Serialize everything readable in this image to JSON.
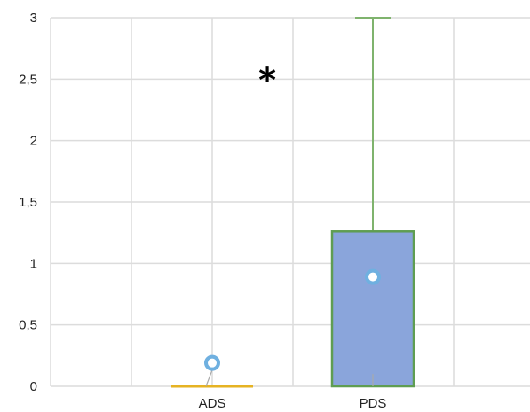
{
  "chart_data": {
    "type": "boxplot",
    "title": "",
    "xlabel": "",
    "ylabel": "",
    "ylim": [
      0,
      3
    ],
    "yticks": [
      "0",
      "0,5",
      "1",
      "1,5",
      "2",
      "2,5",
      "3"
    ],
    "y_tick_values": [
      0,
      0.5,
      1,
      1.5,
      2,
      2.5,
      3
    ],
    "grid": true,
    "categories": [
      "ADS",
      "PDS"
    ],
    "series": [
      {
        "category": "ADS",
        "min": 0,
        "q1": 0,
        "median": 0,
        "q3": 0,
        "max": 0,
        "mean": 0.19,
        "box_color": "#e6b323",
        "whisker_color": "#e6b323"
      },
      {
        "category": "PDS",
        "min": 0,
        "q1": 0,
        "median": 0.1,
        "q3": 1.26,
        "max": 3,
        "mean": 0.89,
        "box_color": "#8aa5db",
        "whisker_color": "#7fb36d"
      }
    ],
    "annotations": [
      {
        "text": "*",
        "x_between": [
          "ADS",
          "PDS"
        ],
        "y": 2.6
      }
    ],
    "colors": {
      "mean_marker": "#6fb0e0",
      "grid": "#dcdcdc",
      "axis": "#d0d0d0",
      "box_edge": "#5f9d52"
    }
  }
}
